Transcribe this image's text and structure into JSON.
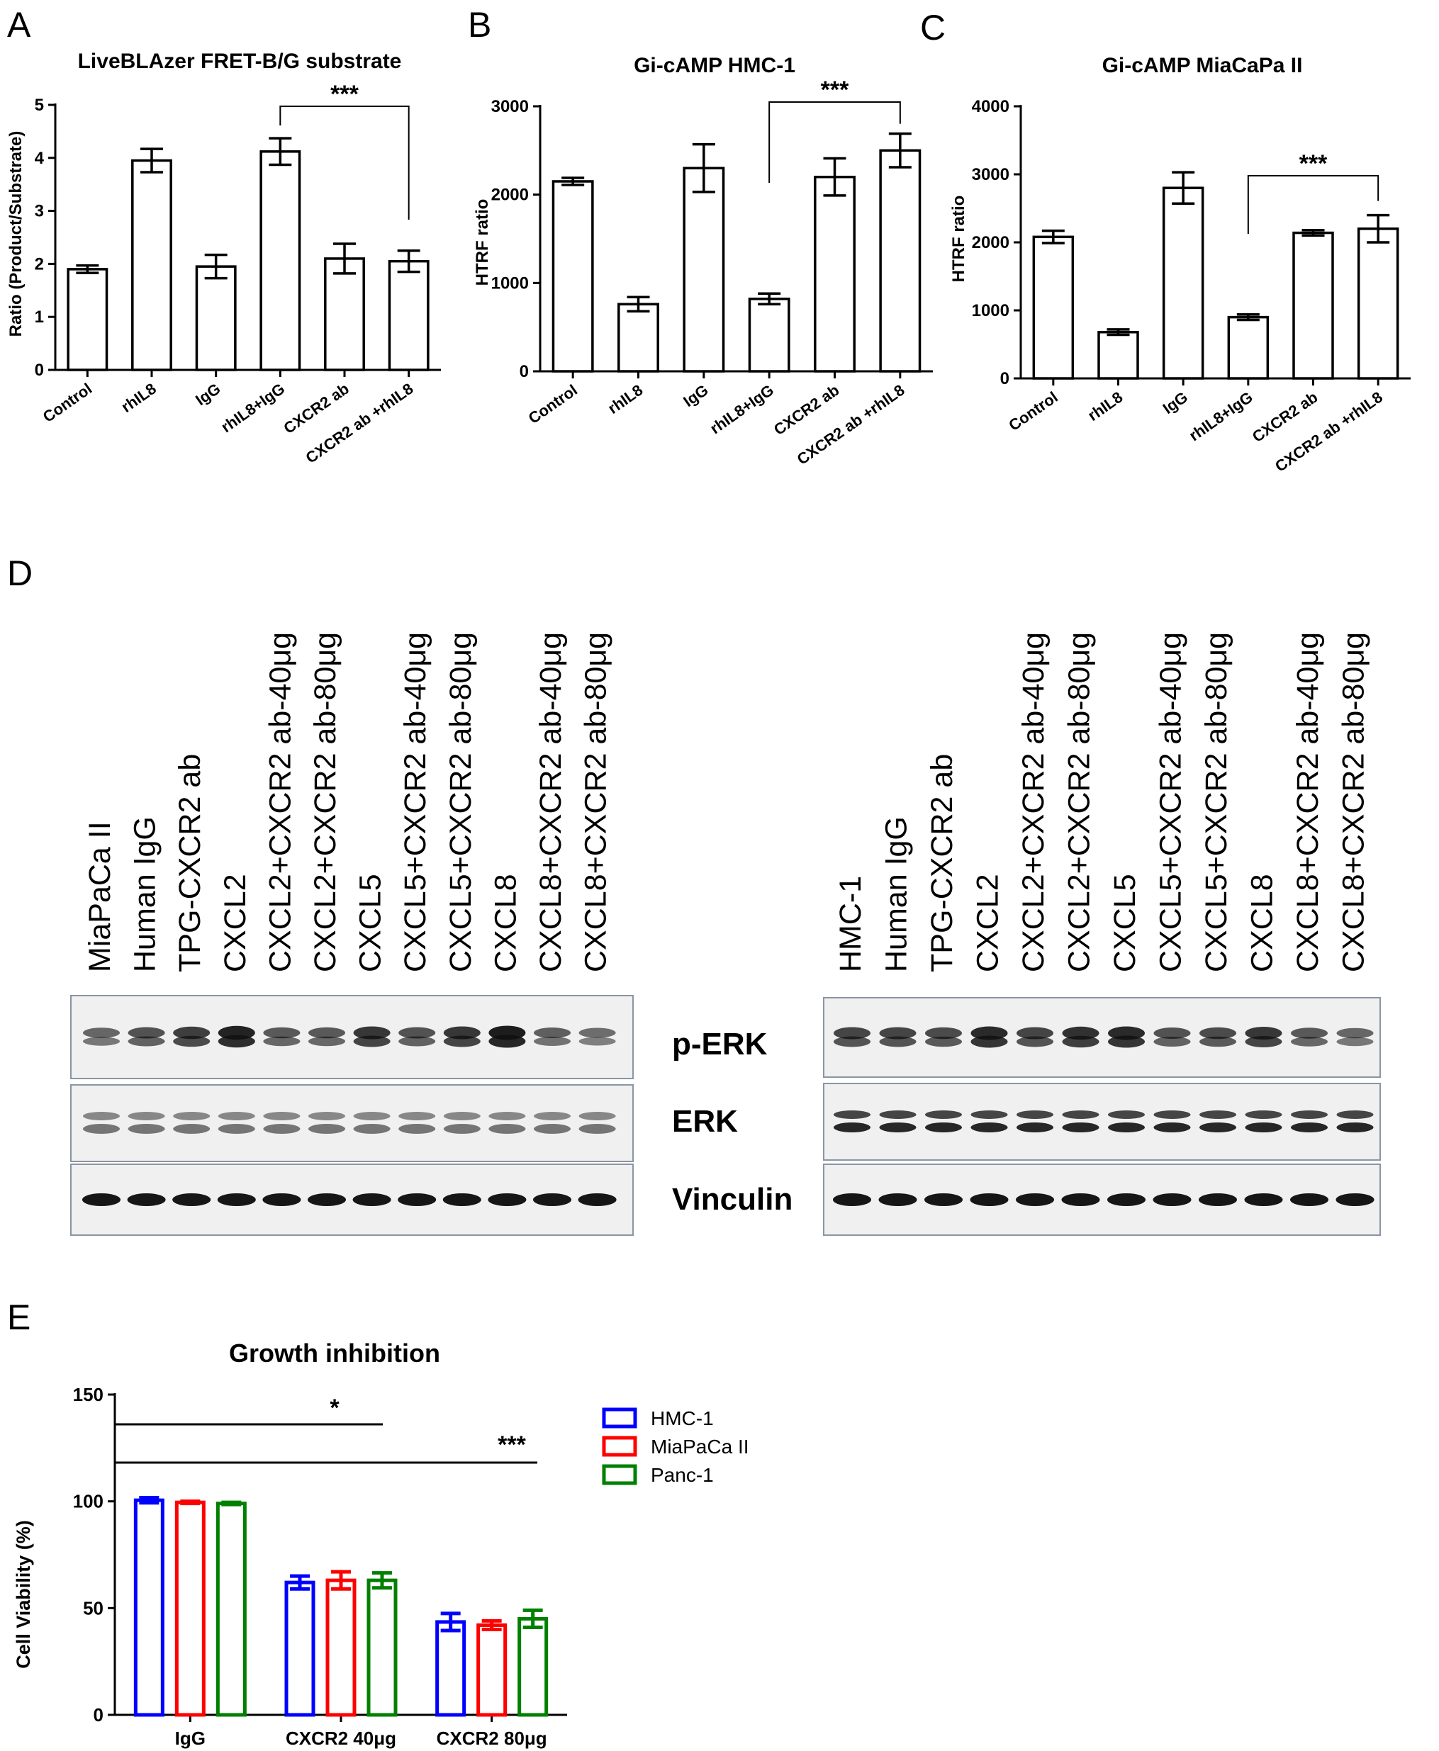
{
  "panels": {
    "A": {
      "letter": "A"
    },
    "B": {
      "letter": "B"
    },
    "C": {
      "letter": "C"
    },
    "D": {
      "letter": "D"
    },
    "E": {
      "letter": "E"
    }
  },
  "chart_data": [
    {
      "panel": "A",
      "type": "bar",
      "title": "LiveBLAzer FRET-B/G substrate",
      "xlabel": "",
      "ylabel": "Ratio (Product/Substrate)",
      "ylim": [
        0,
        5
      ],
      "yticks": [
        "0",
        "1",
        "2",
        "3",
        "4",
        "5"
      ],
      "categories": [
        "Control",
        "rhIL8",
        "IgG",
        "rhIL8+IgG",
        "CXCR2 ab",
        "CXCR2 ab +rhIL8"
      ],
      "values": [
        1.9,
        3.95,
        1.95,
        4.12,
        2.1,
        2.05
      ],
      "errors": [
        0.07,
        0.22,
        0.22,
        0.25,
        0.28,
        0.2
      ],
      "bar_fill": "#ffffff",
      "bar_stroke": "#000000",
      "significance": {
        "from": 3,
        "to": 5,
        "label": "***"
      }
    },
    {
      "panel": "B",
      "type": "bar",
      "title": "Gi-cAMP HMC-1",
      "xlabel": "",
      "ylabel": "HTRF ratio",
      "ylim": [
        0,
        3000
      ],
      "yticks": [
        "0",
        "1000",
        "2000",
        "3000"
      ],
      "categories": [
        "Control",
        "rhIL8",
        "IgG",
        "rhIL8+IgG",
        "CXCR2 ab",
        "CXCR2 ab +rhIL8"
      ],
      "values": [
        2150,
        760,
        2300,
        820,
        2200,
        2500
      ],
      "errors": [
        40,
        80,
        270,
        60,
        210,
        190
      ],
      "bar_fill": "#ffffff",
      "bar_stroke": "#000000",
      "significance": {
        "from": 3,
        "to": 5,
        "label": "***"
      }
    },
    {
      "panel": "C",
      "type": "bar",
      "title": "Gi-cAMP MiaCaPa II",
      "xlabel": "",
      "ylabel": "HTRF ratio",
      "ylim": [
        0,
        4000
      ],
      "yticks": [
        "0",
        "1000",
        "2000",
        "3000",
        "4000"
      ],
      "categories": [
        "Control",
        "rhIL8",
        "IgG",
        "rhIL8+IgG",
        "CXCR2 ab",
        "CXCR2 ab +rhIL8"
      ],
      "values": [
        2080,
        680,
        2800,
        900,
        2140,
        2200
      ],
      "errors": [
        90,
        40,
        230,
        40,
        40,
        200
      ],
      "bar_fill": "#ffffff",
      "bar_stroke": "#000000",
      "significance": {
        "from": 3,
        "to": 5,
        "label": "***"
      }
    },
    {
      "panel": "E",
      "type": "bar",
      "title": "Growth inhibition",
      "xlabel": "",
      "ylabel": "Cell Viability (%)",
      "ylim": [
        0,
        150
      ],
      "yticks": [
        "0",
        "50",
        "100",
        "150"
      ],
      "categories": [
        "IgG",
        "CXCR2 40μg",
        "CXCR2 80μg"
      ],
      "series": [
        {
          "name": "HMC-1",
          "color": "#0000ff",
          "values": [
            100.5,
            62,
            43.5
          ],
          "errors": [
            1.2,
            3,
            4
          ]
        },
        {
          "name": "MiaPaCa II",
          "color": "#ff0000",
          "values": [
            99.5,
            63,
            42
          ],
          "errors": [
            0.5,
            4,
            2
          ]
        },
        {
          "name": "Panc-1",
          "color": "#008000",
          "values": [
            99,
            63,
            45
          ],
          "errors": [
            0.5,
            3.5,
            4
          ]
        }
      ],
      "legend_position": "right",
      "significance": [
        {
          "label": "*",
          "from_category": 0,
          "to_category": 1
        },
        {
          "label": "***",
          "from_category": 0,
          "to_category": 2
        }
      ]
    }
  ],
  "western_blot": {
    "left": {
      "lanes": [
        "MiaPaCa II",
        "Human IgG",
        "TPG-CXCR2 ab",
        "CXCL2",
        "CXCL2+CXCR2 ab-40μg",
        "CXCL2+CXCR2 ab-80μg",
        "CXCL5",
        "CXCL5+CXCR2 ab-40μg",
        "CXCL5+CXCR2 ab-80μg",
        "CXCL8",
        "CXCL8+CXCR2 ab-40μg",
        "CXCL8+CXCR2 ab-80μg"
      ],
      "perk_intensity": [
        0.45,
        0.6,
        0.75,
        0.95,
        0.55,
        0.55,
        0.8,
        0.6,
        0.8,
        1.0,
        0.5,
        0.4
      ]
    },
    "right": {
      "lanes": [
        "HMC-1",
        "Human IgG",
        "TPG-CXCR2 ab",
        "CXCL2",
        "CXCL2+CXCR2 ab-40μg",
        "CXCL2+CXCR2 ab-80μg",
        "CXCL5",
        "CXCL5+CXCR2 ab-40μg",
        "CXCL5+CXCR2 ab-80μg",
        "CXCL8",
        "CXCL8+CXCR2 ab-40μg",
        "CXCL8+CXCR2 ab-80μg"
      ],
      "perk_intensity": [
        0.7,
        0.7,
        0.65,
        0.9,
        0.7,
        0.85,
        0.9,
        0.6,
        0.65,
        0.8,
        0.55,
        0.45
      ]
    },
    "row_labels": [
      "p-ERK",
      "ERK",
      "Vinculin"
    ]
  }
}
